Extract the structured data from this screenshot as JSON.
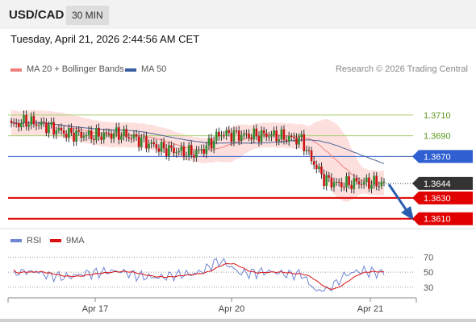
{
  "header": {
    "symbol": "USD/CAD",
    "interval": "30 MIN"
  },
  "timestamp": "Tuesday, April 21, 2026 2:44:56 AM CET",
  "legend": {
    "ma20_label": "MA 20 + Bollinger Bands",
    "ma50_label": "MA 50",
    "ma20_color": "#f08080",
    "ma50_color": "#3a5fa0",
    "credit": "Research © 2026 Trading Central"
  },
  "rsi_legend": {
    "rsi_label": "RSI",
    "ma_label": "9MA",
    "rsi_color": "#6f86d6",
    "ma_color": "#dd1111"
  },
  "chart_data": {
    "type": "candlestick",
    "x_tick_labels": [
      "Apr 17",
      "Apr 20",
      "Apr 21"
    ],
    "price_axis": {
      "min": 1.3602,
      "max": 1.372
    },
    "levels": [
      {
        "label": "1.3710",
        "value": 1.371,
        "style": "resistance"
      },
      {
        "label": "1.3690",
        "value": 1.369,
        "style": "resistance"
      },
      {
        "label": "1.3670",
        "value": 1.367,
        "style": "pivot"
      },
      {
        "label": "1.3644",
        "value": 1.3644,
        "style": "last"
      },
      {
        "label": "1.3630",
        "value": 1.363,
        "style": "support"
      },
      {
        "label": "1.3610",
        "value": 1.361,
        "style": "support"
      }
    ],
    "rsi_axis": {
      "ticks": [
        "70",
        "50",
        "30"
      ],
      "values": [
        70,
        50,
        30
      ],
      "min": 18,
      "max": 80
    },
    "colors": {
      "up": "#2e8b2e",
      "down": "#cc1111",
      "pivot": "#2f5fd0",
      "support": "#e00000",
      "resistance": "#a6cf6e",
      "last": "#333333"
    }
  }
}
